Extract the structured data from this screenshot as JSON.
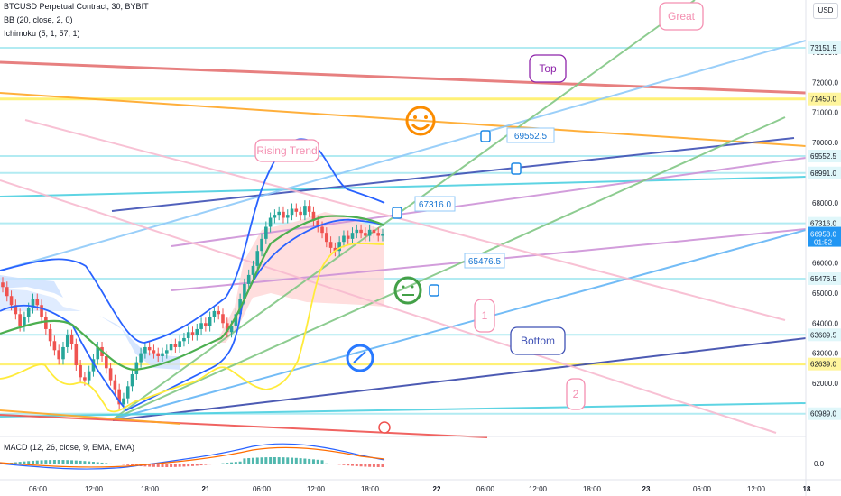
{
  "header": {
    "symbol_line": "BTCUSD Perpetual Contract, 30, BYBIT",
    "bb_line": "BB (20, close, 2, 0)",
    "ichimoku_line": "Ichimoku (5, 1, 57, 1)",
    "currency_button": "USD"
  },
  "macd": {
    "label": "MACD (12, 26, close, 9, EMA, EMA)",
    "zero_label": "0.0"
  },
  "colors": {
    "up": "#26a69a",
    "down": "#ef5350",
    "bb": "#2962ff",
    "bb_mid": "#4caf50",
    "ichimoku_lag": "#ffeb3b",
    "cloud_pos": "#cce0ff",
    "cloud_neg": "#ffd6d6",
    "price_tag": "#2196f3",
    "bg": "#ffffff"
  },
  "chart_data": {
    "type": "candlestick",
    "symbol": "BTCUSD Perpetual Contract",
    "interval": "30",
    "exchange": "BYBIT",
    "currency": "USD",
    "ylim": [
      60500,
      73900
    ],
    "y_ticks": [
      62000,
      63000,
      64000,
      65000,
      66000,
      67000,
      68000,
      69000,
      70000,
      71000,
      72000,
      73000
    ],
    "x_tick_labels": [
      "06:00",
      "12:00",
      "18:00",
      "21",
      "06:00",
      "12:00",
      "18:00",
      "22",
      "06:00",
      "12:00",
      "18:00",
      "23",
      "06:00",
      "12:00",
      "18"
    ],
    "candles_close": [
      65200,
      64900,
      64600,
      64300,
      63900,
      64200,
      64500,
      64800,
      64600,
      64200,
      63800,
      63400,
      63100,
      62800,
      63200,
      63600,
      63300,
      62600,
      62200,
      62100,
      62400,
      62800,
      63200,
      62900,
      62500,
      62100,
      61800,
      61300,
      61500,
      61900,
      62300,
      62700,
      63000,
      63200,
      63100,
      63000,
      62900,
      63000,
      63100,
      63300,
      63200,
      63400,
      63500,
      63700,
      63600,
      63800,
      64000,
      63900,
      64200,
      64400,
      64300,
      64000,
      63700,
      63900,
      64300,
      64800,
      65300,
      65600,
      65900,
      66400,
      66800,
      67200,
      67500,
      67600,
      67700,
      67500,
      67600,
      67800,
      67700,
      67600,
      67900,
      67700,
      67400,
      67200,
      67000,
      66700,
      66500,
      66400,
      66700,
      66900,
      66800,
      67000,
      67100,
      67000,
      66900,
      67100,
      67000,
      66900,
      66958
    ],
    "horizontal_levels": [
      73151.5,
      71450.0,
      69552.5,
      68991.0,
      67316.0,
      65476.5,
      63609.5,
      62639.0,
      60989.0
    ],
    "price_labels": [
      "73151.5",
      "71450.0",
      "69552.5",
      "68991.0",
      "67316.0",
      "65476.5",
      "63609.5",
      "62639.0",
      "60989.0"
    ],
    "last_price": "66958.0",
    "countdown": "01:52",
    "annotations": [
      {
        "text": "Great"
      },
      {
        "text": "Top"
      },
      {
        "text": "Rising Trend"
      },
      {
        "text": "69552.5"
      },
      {
        "text": "67316.0"
      },
      {
        "text": "65476.5"
      },
      {
        "text": "1"
      },
      {
        "text": "Bottom"
      },
      {
        "text": "2"
      }
    ]
  }
}
